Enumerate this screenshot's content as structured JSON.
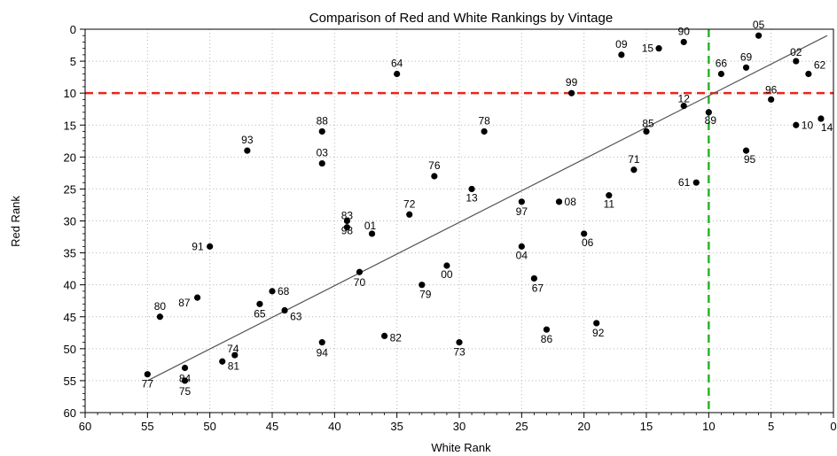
{
  "chart_data": {
    "type": "scatter",
    "title": "Comparison of Red and White Rankings by Vintage",
    "xlabel": "White Rank",
    "ylabel": "Red Rank",
    "xlim": [
      60,
      0
    ],
    "ylim": [
      60,
      0
    ],
    "x_reversed": true,
    "y_reversed": true,
    "x_ticks": [
      "60",
      "55",
      "50",
      "45",
      "40",
      "35",
      "30",
      "25",
      "20",
      "15",
      "10",
      "5",
      "0"
    ],
    "y_ticks": [
      "0",
      "5",
      "10",
      "15",
      "20",
      "25",
      "30",
      "35",
      "40",
      "45",
      "50",
      "55",
      "60"
    ],
    "grid": "dotted",
    "reference_lines": [
      {
        "orientation": "horizontal",
        "value": 10,
        "color": "#e8251b",
        "style": "dashed"
      },
      {
        "orientation": "vertical",
        "value": 10,
        "color": "#2db32d",
        "style": "dashed"
      }
    ],
    "fit_line": {
      "x": [
        55,
        0.5
      ],
      "y": [
        55,
        1
      ],
      "color": "#555555"
    },
    "points": [
      {
        "label": "05",
        "x": 6,
        "y": 1
      },
      {
        "label": "90",
        "x": 12,
        "y": 2
      },
      {
        "label": "15",
        "x": 14,
        "y": 3
      },
      {
        "label": "09",
        "x": 17,
        "y": 4
      },
      {
        "label": "02",
        "x": 3,
        "y": 5
      },
      {
        "label": "69",
        "x": 7,
        "y": 6
      },
      {
        "label": "62",
        "x": 2,
        "y": 7
      },
      {
        "label": "66",
        "x": 9,
        "y": 7
      },
      {
        "label": "64",
        "x": 35,
        "y": 7
      },
      {
        "label": "99",
        "x": 21,
        "y": 10
      },
      {
        "label": "96",
        "x": 5,
        "y": 11
      },
      {
        "label": "12",
        "x": 12,
        "y": 12
      },
      {
        "label": "89",
        "x": 10,
        "y": 13
      },
      {
        "label": "14",
        "x": 1,
        "y": 14
      },
      {
        "label": "10",
        "x": 3,
        "y": 15
      },
      {
        "label": "85",
        "x": 15,
        "y": 16
      },
      {
        "label": "88",
        "x": 41,
        "y": 16
      },
      {
        "label": "78",
        "x": 28,
        "y": 16
      },
      {
        "label": "93",
        "x": 47,
        "y": 19
      },
      {
        "label": "95",
        "x": 7,
        "y": 19
      },
      {
        "label": "03",
        "x": 41,
        "y": 21
      },
      {
        "label": "71",
        "x": 16,
        "y": 22
      },
      {
        "label": "76",
        "x": 32,
        "y": 23
      },
      {
        "label": "61",
        "x": 11,
        "y": 24
      },
      {
        "label": "13",
        "x": 29,
        "y": 25
      },
      {
        "label": "11",
        "x": 18,
        "y": 26
      },
      {
        "label": "97",
        "x": 25,
        "y": 27
      },
      {
        "label": "08",
        "x": 22,
        "y": 27
      },
      {
        "label": "72",
        "x": 34,
        "y": 29
      },
      {
        "label": "83",
        "x": 39,
        "y": 30
      },
      {
        "label": "98",
        "x": 39,
        "y": 31
      },
      {
        "label": "01",
        "x": 37,
        "y": 32
      },
      {
        "label": "06",
        "x": 20,
        "y": 32
      },
      {
        "label": "91",
        "x": 50,
        "y": 34
      },
      {
        "label": "04",
        "x": 25,
        "y": 34
      },
      {
        "label": "00",
        "x": 31,
        "y": 37
      },
      {
        "label": "70",
        "x": 38,
        "y": 38
      },
      {
        "label": "67",
        "x": 24,
        "y": 39
      },
      {
        "label": "79",
        "x": 33,
        "y": 40
      },
      {
        "label": "68",
        "x": 45,
        "y": 41
      },
      {
        "label": "87",
        "x": 51,
        "y": 42
      },
      {
        "label": "65",
        "x": 46,
        "y": 43
      },
      {
        "label": "63",
        "x": 44,
        "y": 44
      },
      {
        "label": "80",
        "x": 54,
        "y": 45
      },
      {
        "label": "92",
        "x": 19,
        "y": 46
      },
      {
        "label": "86",
        "x": 23,
        "y": 47
      },
      {
        "label": "82",
        "x": 36,
        "y": 48
      },
      {
        "label": "73",
        "x": 30,
        "y": 49
      },
      {
        "label": "94",
        "x": 41,
        "y": 49
      },
      {
        "label": "74",
        "x": 48,
        "y": 51
      },
      {
        "label": "81",
        "x": 49,
        "y": 52
      },
      {
        "label": "84",
        "x": 52,
        "y": 53
      },
      {
        "label": "77",
        "x": 55,
        "y": 54
      },
      {
        "label": "75",
        "x": 52,
        "y": 55
      }
    ]
  }
}
